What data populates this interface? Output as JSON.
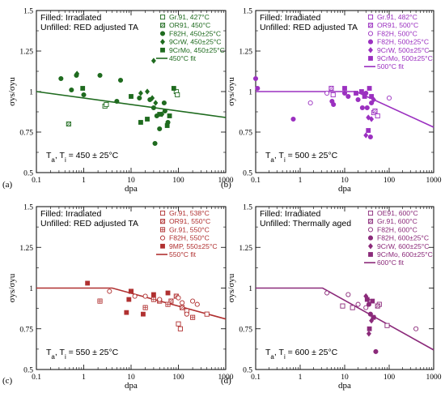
{
  "ylabel": "σys/σyu",
  "xlabel": "dpa",
  "xticks": [
    "0.1",
    "1",
    "10",
    "100",
    "1000"
  ],
  "yticks": [
    "0.5",
    "0.75",
    "1",
    "1.25",
    "1.5"
  ],
  "chart_data": [
    {
      "type": "scatter",
      "panel": "(a)",
      "xscale": "log",
      "xlim": [
        0.1,
        1000
      ],
      "ylim": [
        0.5,
        1.5
      ],
      "color": "#1f6b1f",
      "notes": [
        "Filled: Irradiated",
        "Unfilled: RED adjusted TA"
      ],
      "condition_main": "T",
      "condition_sub1": "a",
      "condition_sep": ", T",
      "condition_sub2": "i",
      "condition_value": " =  450 ± 25°C",
      "legend": [
        {
          "label": "Gr.91, 427°C",
          "marker": "square-open"
        },
        {
          "label": "OR91, 450°C",
          "marker": "square-hatch"
        },
        {
          "label": "F82H, 450±25°C",
          "marker": "circle"
        },
        {
          "label": "9CrW, 450±25°C",
          "marker": "diamond"
        },
        {
          "label": "9CrMo, 450±25°C",
          "marker": "square"
        },
        {
          "label": "450°C fit",
          "marker": "line"
        }
      ],
      "fit": [
        [
          0.1,
          1.0
        ],
        [
          1000,
          0.84
        ]
      ],
      "series": [
        {
          "name": "Gr.91, 427°C",
          "marker": "square-open",
          "points": [
            [
              2.8,
              0.91
            ],
            [
              3.0,
              0.92
            ],
            [
              90,
              1.0
            ],
            [
              95,
              0.98
            ]
          ]
        },
        {
          "name": "OR91, 450°C",
          "marker": "square-hatch",
          "points": [
            [
              0.48,
              0.8
            ]
          ]
        },
        {
          "name": "F82H, 450±25°C",
          "marker": "circle",
          "points": [
            [
              0.33,
              1.08
            ],
            [
              0.55,
              1.01
            ],
            [
              0.7,
              1.1
            ],
            [
              1.0,
              0.98
            ],
            [
              2.2,
              1.1
            ],
            [
              5.0,
              0.94
            ],
            [
              6.0,
              1.07
            ],
            [
              15,
              0.96
            ],
            [
              25,
              0.95
            ],
            [
              30,
              0.9
            ],
            [
              35,
              0.85
            ],
            [
              40,
              0.77
            ],
            [
              50,
              0.93
            ],
            [
              52,
              0.88
            ],
            [
              60,
              0.81
            ],
            [
              32,
              0.68
            ]
          ]
        },
        {
          "name": "9CrW, 450±25°C",
          "marker": "diamond",
          "points": [
            [
              0.72,
              1.11
            ],
            [
              16,
              0.99
            ],
            [
              22,
              1.0
            ],
            [
              28,
              0.96
            ],
            [
              33,
              0.93
            ],
            [
              30,
              1.19
            ],
            [
              45,
              0.86
            ]
          ]
        },
        {
          "name": "9CrMo, 450±25°C",
          "marker": "square",
          "points": [
            [
              0.95,
              1.02
            ],
            [
              10,
              0.97
            ],
            [
              16,
              0.81
            ],
            [
              22,
              0.83
            ],
            [
              40,
              0.86
            ],
            [
              58,
              0.79
            ],
            [
              65,
              0.85
            ],
            [
              80,
              1.02
            ]
          ]
        }
      ]
    },
    {
      "type": "scatter",
      "panel": "(b)",
      "xscale": "log",
      "xlim": [
        0.1,
        1000
      ],
      "ylim": [
        0.5,
        1.5
      ],
      "color": "#9b30c0",
      "notes": [
        "Filled: Irradiated",
        "Unfilled: RED adjusted TA"
      ],
      "condition_main": "T",
      "condition_sub1": "a",
      "condition_sep": ", T",
      "condition_sub2": "i",
      "condition_value": "  =  500 ± 25°C",
      "legend": [
        {
          "label": "Gr.91, 482°C",
          "marker": "square-open"
        },
        {
          "label": "OR91, 500°C",
          "marker": "square-hatch"
        },
        {
          "label": "F82H, 500°C",
          "marker": "circle-open"
        },
        {
          "label": "F82H, 500±25°C",
          "marker": "circle"
        },
        {
          "label": "9CrW, 500±25°C",
          "marker": "diamond"
        },
        {
          "label": "9CrMo, 500±25°C",
          "marker": "square"
        },
        {
          "label": "500°C fit",
          "marker": "line"
        }
      ],
      "fit": [
        [
          0.1,
          1.0
        ],
        [
          18,
          1.0
        ],
        [
          1000,
          0.78
        ]
      ],
      "series": [
        {
          "name": "Gr.91, 482°C",
          "marker": "square-open",
          "points": [
            [
              5.5,
              0.98
            ],
            [
              45,
              0.87
            ],
            [
              55,
              0.85
            ]
          ]
        },
        {
          "name": "OR91, 500°C",
          "marker": "square-hatch",
          "points": [
            [
              5.0,
              1.02
            ],
            [
              48,
              0.88
            ]
          ]
        },
        {
          "name": "F82H, 500°C",
          "marker": "circle-open",
          "points": [
            [
              1.7,
              0.93
            ],
            [
              4.0,
              0.99
            ],
            [
              100,
              0.96
            ]
          ]
        },
        {
          "name": "F82H, 500±25°C",
          "marker": "circle",
          "points": [
            [
              0.1,
              1.08
            ],
            [
              0.11,
              1.02
            ],
            [
              0.7,
              0.83
            ],
            [
              5.2,
              0.94
            ],
            [
              5.6,
              0.92
            ],
            [
              10,
              0.99
            ],
            [
              12,
              0.97
            ],
            [
              20,
              0.95
            ],
            [
              25,
              0.9
            ],
            [
              32,
              0.9
            ],
            [
              38,
              0.72
            ],
            [
              40,
              0.93
            ],
            [
              30,
              0.99
            ]
          ]
        },
        {
          "name": "9CrW, 500±25°C",
          "marker": "diamond",
          "points": [
            [
              28,
              0.98
            ],
            [
              34,
              0.84
            ],
            [
              40,
              0.83
            ],
            [
              30,
              0.73
            ],
            [
              45,
              0.95
            ]
          ]
        },
        {
          "name": "9CrMo, 500±25°C",
          "marker": "square",
          "points": [
            [
              10,
              1.02
            ],
            [
              18,
              0.99
            ],
            [
              24,
              1.0
            ],
            [
              28,
              0.97
            ],
            [
              36,
              1.02
            ],
            [
              40,
              0.97
            ],
            [
              34,
              0.76
            ]
          ]
        }
      ]
    },
    {
      "type": "scatter",
      "panel": "(c)",
      "xscale": "log",
      "xlim": [
        0.1,
        1000
      ],
      "ylim": [
        0.5,
        1.5
      ],
      "color": "#b03030",
      "notes": [
        "Filled: Irradiated",
        "Unfilled: RED adjusted TA"
      ],
      "condition_main": "T",
      "condition_sub1": "a",
      "condition_sep": ", T",
      "condition_sub2": "i",
      "condition_value": "  =  550 ± 25°C",
      "legend": [
        {
          "label": "Gr.91, 538°C",
          "marker": "square-open"
        },
        {
          "label": "OR91, 550°C",
          "marker": "square-hatch"
        },
        {
          "label": "Gr.91, 550°C",
          "marker": "square-cross"
        },
        {
          "label": "F82H, 550°C",
          "marker": "circle-open"
        },
        {
          "label": "9MP, 550±25°C",
          "marker": "square"
        },
        {
          "label": "550°C fit",
          "marker": "line"
        }
      ],
      "fit": [
        [
          0.1,
          1.0
        ],
        [
          4,
          1.0
        ],
        [
          1000,
          0.81
        ]
      ],
      "series": [
        {
          "name": "Gr.91, 538°C",
          "marker": "square-open",
          "points": [
            [
              100,
              0.78
            ],
            [
              110,
              0.75
            ],
            [
              150,
              0.86
            ],
            [
              400,
              0.84
            ]
          ]
        },
        {
          "name": "OR91, 550°C",
          "marker": "square-hatch",
          "points": [
            [
              40,
              0.92
            ],
            [
              70,
              0.92
            ],
            [
              90,
              0.95
            ],
            [
              120,
              0.88
            ]
          ]
        },
        {
          "name": "Gr.91, 550°C",
          "marker": "square-cross",
          "points": [
            [
              2.2,
              0.92
            ],
            [
              10,
              0.98
            ],
            [
              20,
              0.88
            ],
            [
              30,
              0.93
            ],
            [
              60,
              0.9
            ],
            [
              200,
              0.82
            ]
          ]
        },
        {
          "name": "F82H, 550°C",
          "marker": "circle-open",
          "points": [
            [
              3.5,
              0.98
            ],
            [
              12,
              0.95
            ],
            [
              20,
              0.95
            ],
            [
              40,
              0.93
            ],
            [
              100,
              0.94
            ],
            [
              120,
              0.91
            ],
            [
              200,
              0.92
            ],
            [
              250,
              0.9
            ],
            [
              150,
              0.84
            ]
          ]
        },
        {
          "name": "9MP, 550±25°C",
          "marker": "square",
          "points": [
            [
              1.2,
              1.03
            ],
            [
              10,
              0.98
            ],
            [
              9,
              0.93
            ],
            [
              8,
              0.85
            ],
            [
              18,
              0.84
            ],
            [
              30,
              0.96
            ],
            [
              60,
              0.97
            ]
          ]
        }
      ]
    },
    {
      "type": "scatter",
      "panel": "(d)",
      "xscale": "log",
      "xlim": [
        0.1,
        1000
      ],
      "ylim": [
        0.5,
        1.5
      ],
      "color": "#8b2a7a",
      "notes": [
        "Filled: Irradiated",
        "Unfilled: Thermally aged"
      ],
      "condition_main": "T",
      "condition_sub1": "a",
      "condition_sep": ", T",
      "condition_sub2": "i",
      "condition_value": "  =  600 ± 25°C",
      "legend": [
        {
          "label": "OE91, 600°C",
          "marker": "square-open"
        },
        {
          "label": "Gr.91, 600°C",
          "marker": "square-hatch"
        },
        {
          "label": "F82H, 600°C",
          "marker": "circle-open"
        },
        {
          "label": "F82H, 600±25°C",
          "marker": "circle"
        },
        {
          "label": "9CrW, 600±25°C",
          "marker": "diamond"
        },
        {
          "label": "9CrMo, 600±25°C",
          "marker": "square"
        },
        {
          "label": "600°C fit",
          "marker": "line"
        }
      ],
      "fit": [
        [
          0.1,
          1.0
        ],
        [
          3.2,
          1.0
        ],
        [
          1000,
          0.62
        ]
      ],
      "series": [
        {
          "name": "OE91, 600°C",
          "marker": "square-open",
          "points": [
            [
              9,
              0.89
            ],
            [
              15,
              0.88
            ],
            [
              60,
              0.9
            ],
            [
              90,
              0.77
            ]
          ]
        },
        {
          "name": "Gr.91, 600°C",
          "marker": "square-hatch",
          "points": [
            [
              55,
              0.89
            ]
          ]
        },
        {
          "name": "F82H, 600°C",
          "marker": "circle-open",
          "points": [
            [
              4,
              0.97
            ],
            [
              12,
              0.96
            ],
            [
              20,
              0.9
            ],
            [
              30,
              0.88
            ],
            [
              400,
              0.75
            ]
          ]
        },
        {
          "name": "F82H, 600±25°C",
          "marker": "circle",
          "points": [
            [
              35,
              0.9
            ],
            [
              38,
              0.84
            ],
            [
              45,
              0.82
            ],
            [
              50,
              0.61
            ]
          ]
        },
        {
          "name": "9CrW, 600±25°C",
          "marker": "diamond",
          "points": [
            [
              30,
              0.95
            ],
            [
              33,
              0.93
            ],
            [
              40,
              0.8
            ],
            [
              35,
              0.72
            ]
          ]
        },
        {
          "name": "9CrMo, 600±25°C",
          "marker": "square",
          "points": [
            [
              32,
              0.93
            ],
            [
              42,
              0.92
            ],
            [
              36,
              0.75
            ],
            [
              44,
              0.82
            ]
          ]
        }
      ]
    }
  ]
}
